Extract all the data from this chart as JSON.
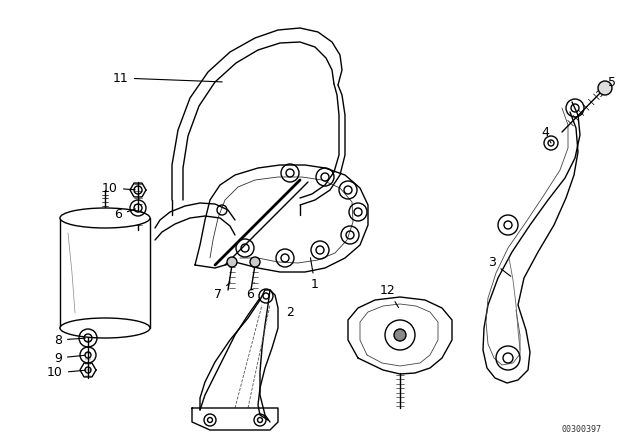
{
  "background_color": "#ffffff",
  "line_color": "#000000",
  "fig_width": 6.4,
  "fig_height": 4.48,
  "dpi": 100,
  "watermark": "00300397",
  "font_size": 9
}
